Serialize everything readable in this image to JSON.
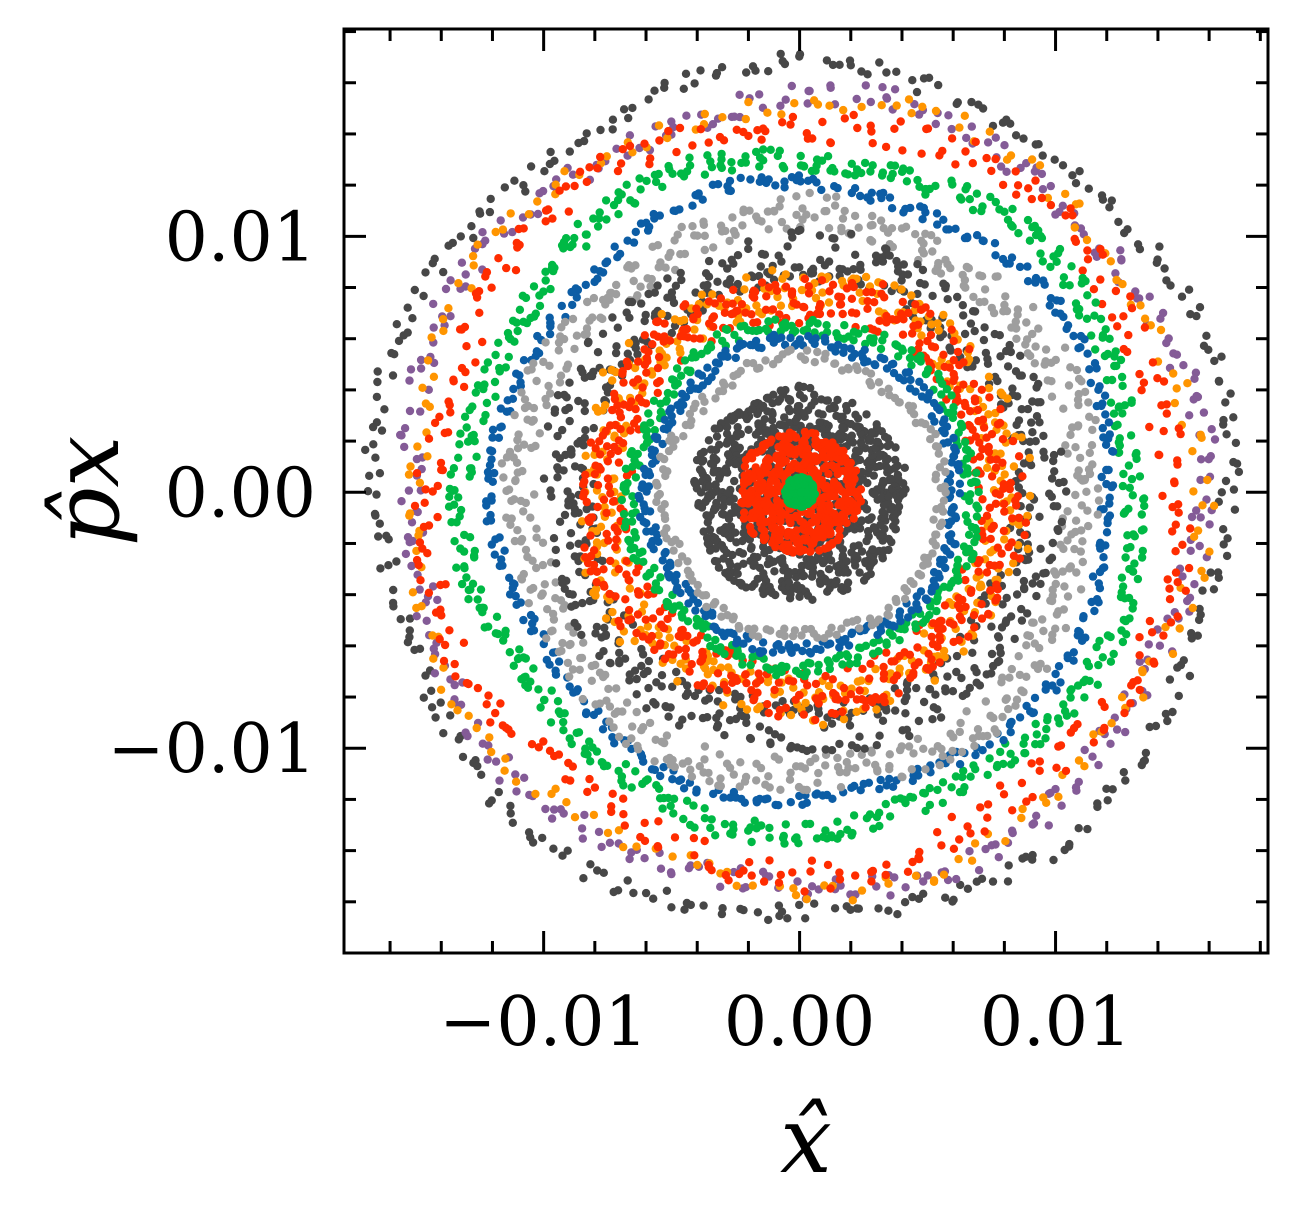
{
  "chart_data": {
    "type": "scatter",
    "title": "",
    "xlabel": "x̂",
    "ylabel": "p̂x",
    "xlim": [
      -0.0178,
      0.0183
    ],
    "ylim": [
      -0.018,
      0.0181
    ],
    "x_ticks": [
      {
        "value": -0.01,
        "label": "−0.01"
      },
      {
        "value": 0.0,
        "label": "0.00"
      },
      {
        "value": 0.01,
        "label": "0.01"
      }
    ],
    "y_ticks": [
      {
        "value": 0.01,
        "label": "0.01"
      },
      {
        "value": 0.0,
        "label": "0.00"
      },
      {
        "value": -0.01,
        "label": "−0.01"
      }
    ],
    "minor_tick_step": 0.002,
    "grid": false,
    "legend": "none",
    "series": [
      {
        "color": "#474747",
        "ring": [
          0.0163,
          0.017
        ],
        "cx": 0.0001,
        "cy": -0.0001,
        "points": 300
      },
      {
        "color": "#845B97",
        "ring": [
          0.015,
          0.016
        ],
        "cx": 0.0001,
        "cy": -0.0001,
        "points": 320
      },
      {
        "color": "#FF9500",
        "ring": [
          0.015,
          0.0158
        ],
        "cx": 0.0001,
        "cy": -0.0001,
        "points": 180
      },
      {
        "color": "#FF2C00",
        "ring": [
          0.014,
          0.0152
        ],
        "cx": 0.0001,
        "cy": -0.0001,
        "points": 320
      },
      {
        "color": "#00B945",
        "ring": [
          0.0127,
          0.0136
        ],
        "cx": 0.0001,
        "cy": 0.0,
        "points": 520
      },
      {
        "color": "#0C5DA5",
        "ring": [
          0.0118,
          0.0123
        ],
        "cx": 0.0002,
        "cy": 0.0,
        "points": 360
      },
      {
        "color": "#9E9E9E",
        "ring": [
          0.0103,
          0.0117
        ],
        "cx": 0.0001,
        "cy": -0.0002,
        "points": 520
      },
      {
        "color": "#474747",
        "ring": [
          0.0082,
          0.0102
        ],
        "cx": 0.0001,
        "cy": -0.0001,
        "points": 620
      },
      {
        "color": "#FF9500",
        "ring": [
          0.0072,
          0.009
        ],
        "cx": 0.0001,
        "cy": -0.0001,
        "points": 380
      },
      {
        "color": "#FF2C00",
        "ring": [
          0.0068,
          0.0087
        ],
        "cx": 0.0001,
        "cy": -0.0001,
        "points": 560
      },
      {
        "color": "#00B945",
        "ring": [
          0.0064,
          0.007
        ],
        "cx": 0.0001,
        "cy": -0.0001,
        "points": 300
      },
      {
        "color": "#0C5DA5",
        "ring": [
          0.0058,
          0.0063
        ],
        "cx": 0.0001,
        "cy": -0.0001,
        "points": 280
      },
      {
        "color": "#9E9E9E",
        "ring": [
          0.0052,
          0.0057
        ],
        "cx": 0.0001,
        "cy": -0.0002,
        "points": 180
      },
      {
        "color": "#474747",
        "ring": [
          0.0,
          0.0042
        ],
        "cx": 0.0,
        "cy": -0.0001,
        "points": 900
      },
      {
        "color": "#FF2C00",
        "ring": [
          0.0,
          0.0024
        ],
        "cx": 0.0,
        "cy": 0.0,
        "points": 500
      },
      {
        "color": "#00B945",
        "ring": [
          0.0,
          0.0006
        ],
        "cx": 0.0,
        "cy": 0.0,
        "points": 140
      }
    ]
  }
}
